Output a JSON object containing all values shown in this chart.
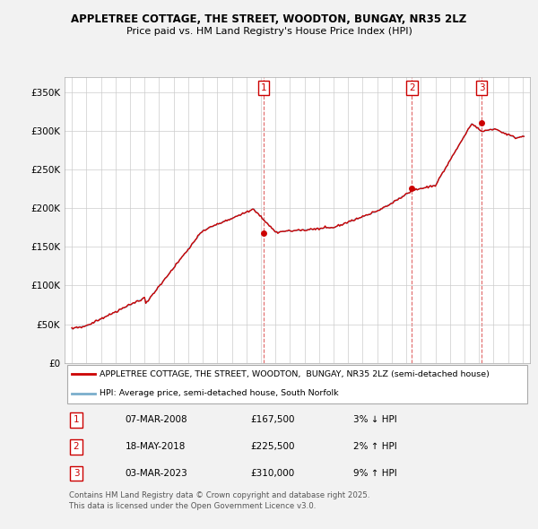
{
  "title": "APPLETREE COTTAGE, THE STREET, WOODTON, BUNGAY, NR35 2LZ",
  "subtitle": "Price paid vs. HM Land Registry's House Price Index (HPI)",
  "legend_red": "APPLETREE COTTAGE, THE STREET, WOODTON,  BUNGAY, NR35 2LZ (semi-detached house)",
  "legend_blue": "HPI: Average price, semi-detached house, South Norfolk",
  "copyright": "Contains HM Land Registry data © Crown copyright and database right 2025.\nThis data is licensed under the Open Government Licence v3.0.",
  "transactions": [
    {
      "num": 1,
      "date": "07-MAR-2008",
      "price": "£167,500",
      "hpi_diff": "3% ↓ HPI",
      "year": 2008.18
    },
    {
      "num": 2,
      "date": "18-MAY-2018",
      "price": "£225,500",
      "hpi_diff": "2% ↑ HPI",
      "year": 2018.38
    },
    {
      "num": 3,
      "date": "03-MAR-2023",
      "price": "£310,000",
      "hpi_diff": "9% ↑ HPI",
      "year": 2023.17
    }
  ],
  "yticks": [
    0,
    50000,
    100000,
    150000,
    200000,
    250000,
    300000,
    350000
  ],
  "ytick_labels": [
    "£0",
    "£50K",
    "£100K",
    "£150K",
    "£200K",
    "£250K",
    "£300K",
    "£350K"
  ],
  "xlim": [
    1994.5,
    2026.5
  ],
  "ylim": [
    0,
    370000
  ],
  "background_color": "#f2f2f2",
  "plot_bg": "#ffffff",
  "grid_color": "#cccccc",
  "red_color": "#cc0000",
  "blue_color": "#7aaecc"
}
